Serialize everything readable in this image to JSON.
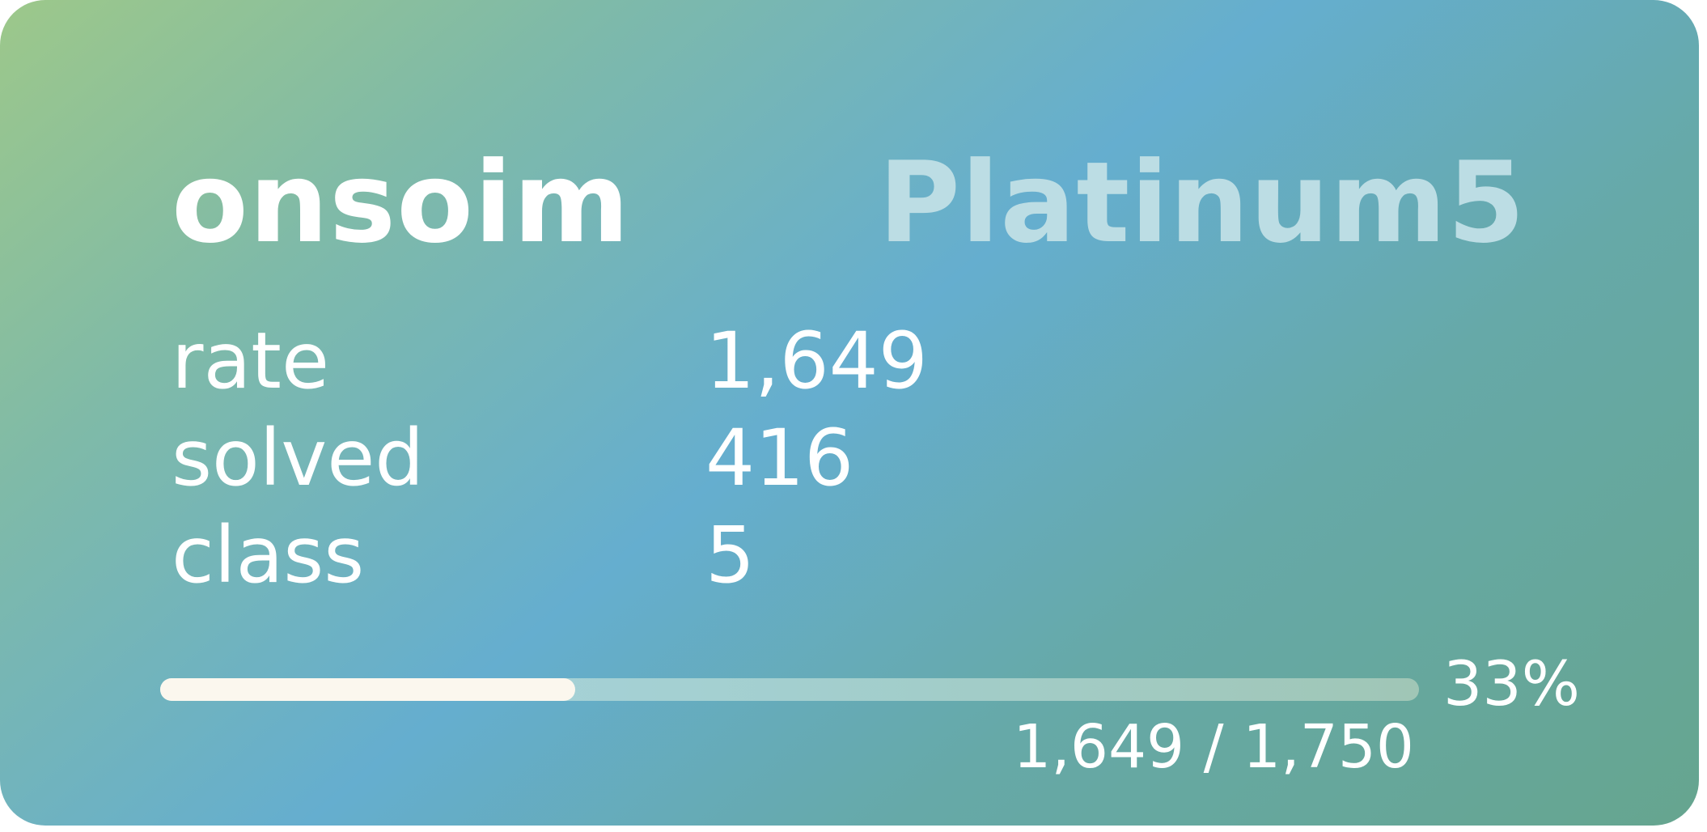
{
  "profile": {
    "handle": "onsoim",
    "tier": "Platinum5"
  },
  "stats": [
    {
      "label": "rate",
      "value": "1,649"
    },
    {
      "label": "solved",
      "value": "416"
    },
    {
      "label": "class",
      "value": "5"
    }
  ],
  "progress": {
    "percent_label": "33%",
    "fraction": 0.33,
    "current": "1,649",
    "separator": "/",
    "target": "1,750"
  },
  "colors": {
    "gradient_start": "#9dc88a",
    "gradient_mid": "#65aecf",
    "gradient_end": "#66a58f",
    "tier_text": "#bcdde4",
    "bar_fill": "#fbf7ee"
  }
}
